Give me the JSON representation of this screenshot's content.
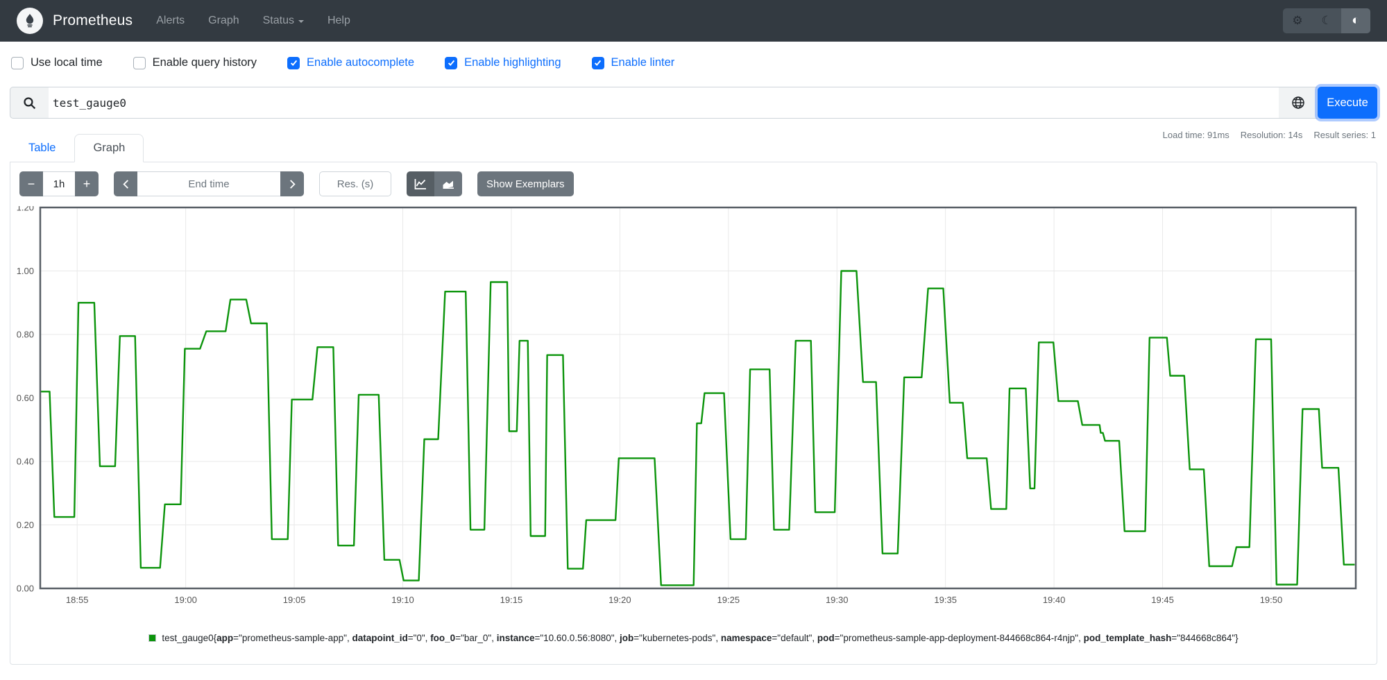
{
  "navbar": {
    "brand": "Prometheus",
    "items": [
      {
        "label": "Alerts"
      },
      {
        "label": "Graph"
      },
      {
        "label": "Status",
        "dropdown": true
      },
      {
        "label": "Help"
      }
    ],
    "theme_toggle": {
      "icons": [
        "gear-icon",
        "moon-icon",
        "auto-contrast-icon"
      ],
      "active": "auto-contrast-icon"
    }
  },
  "options": [
    {
      "label": "Use local time",
      "checked": false
    },
    {
      "label": "Enable query history",
      "checked": false
    },
    {
      "label": "Enable autocomplete",
      "checked": true
    },
    {
      "label": "Enable highlighting",
      "checked": true
    },
    {
      "label": "Enable linter",
      "checked": true
    }
  ],
  "query": {
    "value": "test_gauge0",
    "execute_label": "Execute"
  },
  "tabs": [
    {
      "label": "Table",
      "active": false
    },
    {
      "label": "Graph",
      "active": true
    }
  ],
  "stats": {
    "load_time": "Load time: 91ms",
    "resolution": "Resolution: 14s",
    "result_series": "Result series: 1"
  },
  "controls": {
    "minus_label": "−",
    "duration": "1h",
    "plus_label": "+",
    "end_time_placeholder": "End time",
    "res_placeholder": "Res. (s)",
    "show_exemplars_label": "Show Exemplars"
  },
  "chart_data": {
    "type": "line",
    "style": "step-gauge",
    "title": "",
    "xlabel": "",
    "ylabel": "",
    "ylim": [
      0,
      1.2
    ],
    "grid": true,
    "line_color": "#0b940b",
    "y_ticks": [
      "0.00",
      "0.20",
      "0.40",
      "0.60",
      "0.80",
      "1.00",
      "1.20"
    ],
    "x_ticks": [
      {
        "t": 0,
        "label": "18:55"
      },
      {
        "t": 5,
        "label": "19:00"
      },
      {
        "t": 10,
        "label": "19:05"
      },
      {
        "t": 15,
        "label": "19:10"
      },
      {
        "t": 20,
        "label": "19:15"
      },
      {
        "t": 25,
        "label": "19:20"
      },
      {
        "t": 30,
        "label": "19:25"
      },
      {
        "t": 35,
        "label": "19:30"
      },
      {
        "t": 40,
        "label": "19:35"
      },
      {
        "t": 45,
        "label": "19:40"
      },
      {
        "t": 50,
        "label": "19:45"
      },
      {
        "t": 55,
        "label": "19:50"
      }
    ],
    "t_domain_minutes_from_1855": [
      -1.7,
      58.9
    ],
    "series": [
      {
        "name": "test_gauge0",
        "points": [
          [
            -1.7,
            0.62
          ],
          [
            -1.27,
            0.62
          ],
          [
            -1.05,
            0.225
          ],
          [
            -0.13,
            0.225
          ],
          [
            0.06,
            0.9
          ],
          [
            0.79,
            0.9
          ],
          [
            1.05,
            0.385
          ],
          [
            1.75,
            0.385
          ],
          [
            1.97,
            0.795
          ],
          [
            2.67,
            0.795
          ],
          [
            2.93,
            0.065
          ],
          [
            3.82,
            0.065
          ],
          [
            4.04,
            0.265
          ],
          [
            4.77,
            0.265
          ],
          [
            4.96,
            0.755
          ],
          [
            5.66,
            0.755
          ],
          [
            5.95,
            0.81
          ],
          [
            6.84,
            0.81
          ],
          [
            7.06,
            0.91
          ],
          [
            7.79,
            0.91
          ],
          [
            8.01,
            0.835
          ],
          [
            8.74,
            0.835
          ],
          [
            8.97,
            0.155
          ],
          [
            9.7,
            0.155
          ],
          [
            9.89,
            0.595
          ],
          [
            10.84,
            0.595
          ],
          [
            11.07,
            0.76
          ],
          [
            11.8,
            0.76
          ],
          [
            12.02,
            0.135
          ],
          [
            12.75,
            0.135
          ],
          [
            12.97,
            0.61
          ],
          [
            13.89,
            0.61
          ],
          [
            14.15,
            0.09
          ],
          [
            14.85,
            0.09
          ],
          [
            15.04,
            0.025
          ],
          [
            15.74,
            0.025
          ],
          [
            15.99,
            0.47
          ],
          [
            16.63,
            0.47
          ],
          [
            16.95,
            0.935
          ],
          [
            17.9,
            0.935
          ],
          [
            18.12,
            0.185
          ],
          [
            18.76,
            0.185
          ],
          [
            19.05,
            0.965
          ],
          [
            19.81,
            0.965
          ],
          [
            19.9,
            0.495
          ],
          [
            20.25,
            0.495
          ],
          [
            20.38,
            0.78
          ],
          [
            20.76,
            0.78
          ],
          [
            20.89,
            0.165
          ],
          [
            21.56,
            0.165
          ],
          [
            21.65,
            0.735
          ],
          [
            22.38,
            0.735
          ],
          [
            22.6,
            0.062
          ],
          [
            23.3,
            0.062
          ],
          [
            23.45,
            0.215
          ],
          [
            24.8,
            0.215
          ],
          [
            24.95,
            0.41
          ],
          [
            26.6,
            0.41
          ],
          [
            26.9,
            0.01
          ],
          [
            28.4,
            0.01
          ],
          [
            28.55,
            0.52
          ],
          [
            28.75,
            0.52
          ],
          [
            28.9,
            0.615
          ],
          [
            29.8,
            0.615
          ],
          [
            30.1,
            0.155
          ],
          [
            30.8,
            0.155
          ],
          [
            31.0,
            0.69
          ],
          [
            31.9,
            0.69
          ],
          [
            32.1,
            0.185
          ],
          [
            32.8,
            0.185
          ],
          [
            33.1,
            0.78
          ],
          [
            33.8,
            0.78
          ],
          [
            34.0,
            0.24
          ],
          [
            34.9,
            0.24
          ],
          [
            35.2,
            1.0
          ],
          [
            35.9,
            1.0
          ],
          [
            36.2,
            0.65
          ],
          [
            36.8,
            0.65
          ],
          [
            37.1,
            0.11
          ],
          [
            37.8,
            0.11
          ],
          [
            38.1,
            0.665
          ],
          [
            38.9,
            0.665
          ],
          [
            39.2,
            0.945
          ],
          [
            39.9,
            0.945
          ],
          [
            40.2,
            0.585
          ],
          [
            40.8,
            0.585
          ],
          [
            41.0,
            0.41
          ],
          [
            41.9,
            0.41
          ],
          [
            42.1,
            0.25
          ],
          [
            42.8,
            0.25
          ],
          [
            42.95,
            0.63
          ],
          [
            43.7,
            0.63
          ],
          [
            43.9,
            0.315
          ],
          [
            44.1,
            0.315
          ],
          [
            44.3,
            0.775
          ],
          [
            44.97,
            0.775
          ],
          [
            45.2,
            0.59
          ],
          [
            46.1,
            0.59
          ],
          [
            46.3,
            0.515
          ],
          [
            47.1,
            0.515
          ],
          [
            47.15,
            0.49
          ],
          [
            47.25,
            0.49
          ],
          [
            47.35,
            0.465
          ],
          [
            48.0,
            0.465
          ],
          [
            48.25,
            0.18
          ],
          [
            49.2,
            0.18
          ],
          [
            49.4,
            0.79
          ],
          [
            50.2,
            0.79
          ],
          [
            50.35,
            0.67
          ],
          [
            51.0,
            0.67
          ],
          [
            51.25,
            0.375
          ],
          [
            51.9,
            0.375
          ],
          [
            52.15,
            0.07
          ],
          [
            53.2,
            0.07
          ],
          [
            53.4,
            0.13
          ],
          [
            54.0,
            0.13
          ],
          [
            54.3,
            0.785
          ],
          [
            55.0,
            0.785
          ],
          [
            55.25,
            0.012
          ],
          [
            56.2,
            0.012
          ],
          [
            56.45,
            0.565
          ],
          [
            57.2,
            0.565
          ],
          [
            57.35,
            0.38
          ],
          [
            58.1,
            0.38
          ],
          [
            58.35,
            0.075
          ],
          [
            58.85,
            0.075
          ]
        ]
      }
    ],
    "legend": {
      "metric": "test_gauge0",
      "labels": [
        {
          "key": "app",
          "value": "prometheus-sample-app"
        },
        {
          "key": "datapoint_id",
          "value": "0"
        },
        {
          "key": "foo_0",
          "value": "bar_0"
        },
        {
          "key": "instance",
          "value": "10.60.0.56:8080"
        },
        {
          "key": "job",
          "value": "kubernetes-pods"
        },
        {
          "key": "namespace",
          "value": "default"
        },
        {
          "key": "pod",
          "value": "prometheus-sample-app-deployment-844668c864-r4njp"
        },
        {
          "key": "pod_template_hash",
          "value": "844668c864"
        }
      ]
    }
  }
}
